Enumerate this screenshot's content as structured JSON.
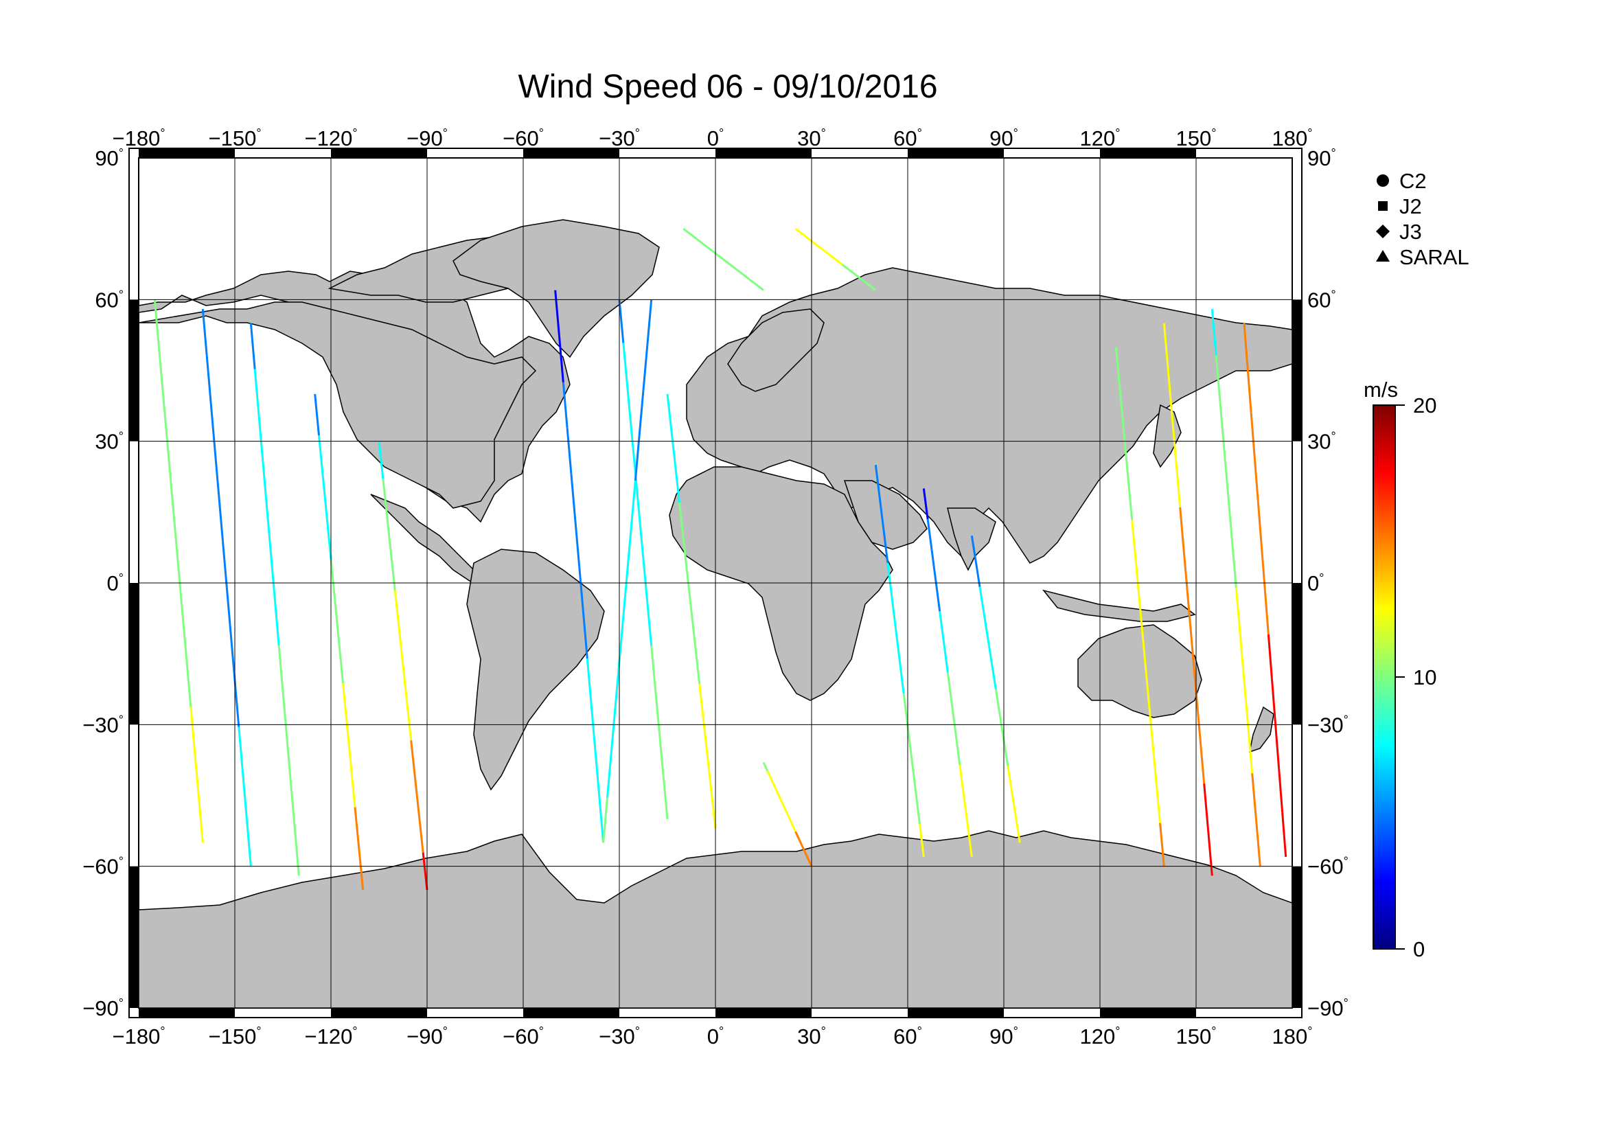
{
  "title": "Wind Speed 06 - 09/10/2016",
  "map": {
    "projection": "equirectangular",
    "lon_range": [
      -180,
      180
    ],
    "lat_range": [
      -90,
      90
    ],
    "lon_ticks": [
      -180,
      -150,
      -120,
      -90,
      -60,
      -30,
      0,
      30,
      60,
      90,
      120,
      150,
      180
    ],
    "lat_ticks": [
      -90,
      -60,
      -30,
      0,
      30,
      60,
      90
    ],
    "lat_grid": [
      -60,
      -30,
      0,
      30,
      60
    ],
    "lon_tick_labels": [
      "−180",
      "−150",
      "−120",
      "−90",
      "−60",
      "−30",
      "0",
      "30",
      "60",
      "90",
      "120",
      "150",
      "180"
    ],
    "lat_tick_labels": [
      "−90",
      "−60",
      "−30",
      "0",
      "30",
      "60",
      "90"
    ],
    "degree_symbol": "°",
    "land_color": "#bebebe",
    "ocean_color": "#ffffff",
    "grid": true
  },
  "legend": {
    "items": [
      {
        "label": "C2",
        "marker": "circle"
      },
      {
        "label": "J2",
        "marker": "square"
      },
      {
        "label": "J3",
        "marker": "diamond"
      },
      {
        "label": "SARAL",
        "marker": "triangle"
      }
    ]
  },
  "colorbar": {
    "unit": "m/s",
    "min": 0,
    "max": 20,
    "ticks": [
      0,
      10,
      20
    ],
    "tick_labels": [
      "0",
      "10",
      "20"
    ],
    "colors": [
      "#00007f",
      "#0000ff",
      "#007fff",
      "#00ffff",
      "#7fff7f",
      "#ffff00",
      "#ff7f00",
      "#ff0000",
      "#7f0000"
    ]
  },
  "chart_data": {
    "type": "scatter",
    "title": "Wind Speed 06 - 09/10/2016",
    "xlabel": "",
    "ylabel": "",
    "xlim": [
      -180,
      180
    ],
    "ylim": [
      -90,
      90
    ],
    "x_units": "degrees longitude",
    "y_units": "degrees latitude",
    "value_units": "m/s",
    "value_range": [
      0,
      20
    ],
    "description_of_marks": "Along-track altimeter wind speed observations colored by speed",
    "tracks": [
      {
        "lon": [
          -175,
          -160
        ],
        "lat": [
          60,
          -55
        ],
        "wind": [
          9,
          12
        ]
      },
      {
        "lon": [
          -160,
          -145
        ],
        "lat": [
          58,
          -60
        ],
        "wind": [
          4,
          7
        ]
      },
      {
        "lon": [
          -145,
          -130
        ],
        "lat": [
          55,
          -62
        ],
        "wind": [
          6,
          11
        ]
      },
      {
        "lon": [
          -125,
          -110
        ],
        "lat": [
          40,
          -65
        ],
        "wind": [
          5,
          16
        ]
      },
      {
        "lon": [
          -105,
          -90
        ],
        "lat": [
          30,
          -65
        ],
        "wind": [
          8,
          17
        ]
      },
      {
        "lon": [
          -50,
          -35
        ],
        "lat": [
          62,
          -55
        ],
        "wind": [
          3,
          8
        ]
      },
      {
        "lon": [
          -30,
          -15
        ],
        "lat": [
          60,
          -50
        ],
        "wind": [
          6,
          10
        ]
      },
      {
        "lon": [
          -15,
          0
        ],
        "lat": [
          40,
          -52
        ],
        "wind": [
          7,
          13
        ]
      },
      {
        "lon": [
          -35,
          -20
        ],
        "lat": [
          -55,
          60
        ],
        "wind": [
          9,
          5
        ]
      },
      {
        "lon": [
          15,
          30
        ],
        "lat": [
          -38,
          -60
        ],
        "wind": [
          11,
          15
        ]
      },
      {
        "lon": [
          50,
          65
        ],
        "lat": [
          25,
          -58
        ],
        "wind": [
          4,
          12
        ]
      },
      {
        "lon": [
          65,
          80
        ],
        "lat": [
          20,
          -58
        ],
        "wind": [
          3,
          14
        ]
      },
      {
        "lon": [
          80,
          95
        ],
        "lat": [
          10,
          -55
        ],
        "wind": [
          5,
          13
        ]
      },
      {
        "lon": [
          125,
          140
        ],
        "lat": [
          50,
          -60
        ],
        "wind": [
          10,
          14
        ]
      },
      {
        "lon": [
          140,
          155
        ],
        "lat": [
          55,
          -62
        ],
        "wind": [
          12,
          17
        ]
      },
      {
        "lon": [
          155,
          170
        ],
        "lat": [
          58,
          -60
        ],
        "wind": [
          8,
          15
        ]
      },
      {
        "lon": [
          165,
          178
        ],
        "lat": [
          55,
          -58
        ],
        "wind": [
          14,
          18
        ]
      },
      {
        "lon": [
          -10,
          15
        ],
        "lat": [
          75,
          62
        ],
        "wind": [
          11,
          9
        ]
      },
      {
        "lon": [
          25,
          50
        ],
        "lat": [
          75,
          62
        ],
        "wind": [
          13,
          10
        ]
      }
    ]
  }
}
